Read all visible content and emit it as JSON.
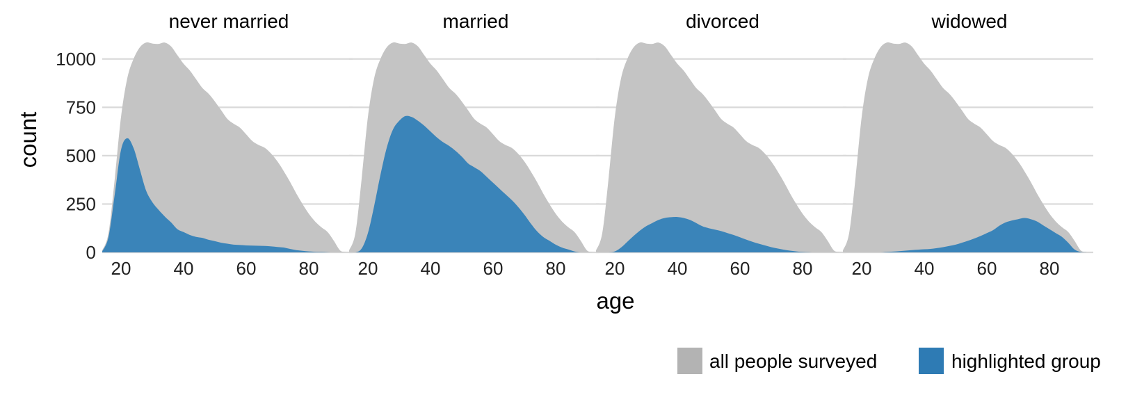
{
  "chart_data": {
    "type": "area",
    "xlabel": "age",
    "ylabel": "count",
    "xlim": [
      14,
      94
    ],
    "ylim": [
      0,
      1100
    ],
    "xticks": [
      20,
      40,
      60,
      80
    ],
    "yticks": [
      0,
      250,
      500,
      750,
      1000
    ],
    "grid": "horizontal",
    "legend_position": "bottom-right",
    "legend": [
      {
        "label": "all people surveyed",
        "color": "#b3b3b3"
      },
      {
        "label": "highlighted group",
        "color": "#2e7bb4"
      }
    ],
    "colors": {
      "all": "#c4c4c4",
      "highlight": "#3a84b9",
      "grid": "#d9d9d9"
    },
    "all_people": {
      "x": [
        14,
        16,
        18,
        20,
        22,
        24,
        26,
        28,
        30,
        32,
        34,
        36,
        38,
        40,
        42,
        44,
        46,
        48,
        50,
        52,
        54,
        56,
        58,
        60,
        62,
        64,
        66,
        68,
        70,
        72,
        74,
        76,
        78,
        80,
        82,
        84,
        86,
        88,
        90,
        92
      ],
      "y": [
        10,
        100,
        380,
        700,
        900,
        1000,
        1060,
        1085,
        1080,
        1078,
        1085,
        1065,
        1020,
        975,
        940,
        895,
        850,
        820,
        780,
        735,
        690,
        665,
        645,
        610,
        575,
        555,
        540,
        510,
        470,
        420,
        365,
        305,
        250,
        200,
        160,
        130,
        105,
        60,
        10,
        0
      ]
    },
    "panels": [
      {
        "title": "never married",
        "highlight": {
          "x": [
            14,
            16,
            18,
            20,
            22,
            24,
            26,
            28,
            30,
            32,
            34,
            36,
            38,
            40,
            42,
            44,
            46,
            48,
            50,
            52,
            54,
            56,
            58,
            60,
            62,
            64,
            66,
            68,
            70,
            72,
            74,
            76,
            78,
            80,
            82,
            84,
            86,
            88,
            90,
            92
          ],
          "y": [
            5,
            80,
            300,
            530,
            590,
            540,
            430,
            320,
            260,
            220,
            185,
            155,
            120,
            105,
            90,
            80,
            75,
            65,
            58,
            50,
            45,
            40,
            38,
            36,
            35,
            34,
            33,
            31,
            28,
            25,
            18,
            12,
            8,
            5,
            3,
            2,
            1,
            0,
            0,
            0
          ]
        }
      },
      {
        "title": "married",
        "highlight": {
          "x": [
            14,
            16,
            18,
            20,
            22,
            24,
            26,
            28,
            30,
            32,
            34,
            36,
            38,
            40,
            42,
            44,
            46,
            48,
            50,
            52,
            54,
            56,
            58,
            60,
            62,
            64,
            66,
            68,
            70,
            72,
            74,
            76,
            78,
            80,
            82,
            84,
            86,
            88,
            90,
            92
          ],
          "y": [
            0,
            0,
            20,
            100,
            240,
            400,
            540,
            635,
            680,
            705,
            700,
            680,
            655,
            625,
            595,
            570,
            550,
            525,
            495,
            460,
            440,
            420,
            390,
            360,
            330,
            300,
            270,
            235,
            195,
            150,
            110,
            80,
            60,
            40,
            25,
            15,
            5,
            0,
            0,
            0
          ]
        }
      },
      {
        "title": "divorced",
        "highlight": {
          "x": [
            14,
            16,
            18,
            20,
            22,
            24,
            26,
            28,
            30,
            32,
            34,
            36,
            38,
            40,
            42,
            44,
            46,
            48,
            50,
            52,
            54,
            56,
            58,
            60,
            62,
            64,
            66,
            68,
            70,
            72,
            74,
            76,
            78,
            80,
            82,
            84,
            86,
            88,
            90,
            92
          ],
          "y": [
            0,
            0,
            0,
            5,
            25,
            55,
            85,
            112,
            135,
            152,
            168,
            178,
            182,
            183,
            178,
            168,
            152,
            135,
            125,
            118,
            110,
            100,
            90,
            78,
            66,
            55,
            45,
            36,
            27,
            20,
            14,
            9,
            5,
            2,
            1,
            0,
            0,
            0,
            0,
            0
          ]
        }
      },
      {
        "title": "widowed",
        "highlight": {
          "x": [
            14,
            16,
            18,
            20,
            22,
            24,
            26,
            28,
            30,
            32,
            34,
            36,
            38,
            40,
            42,
            44,
            46,
            48,
            50,
            52,
            54,
            56,
            58,
            60,
            62,
            64,
            66,
            68,
            70,
            72,
            74,
            76,
            78,
            80,
            82,
            84,
            86,
            88,
            90,
            92
          ],
          "y": [
            0,
            0,
            0,
            0,
            0,
            0,
            0,
            2,
            4,
            6,
            9,
            12,
            14,
            16,
            18,
            22,
            27,
            33,
            40,
            50,
            60,
            72,
            85,
            100,
            115,
            138,
            155,
            165,
            172,
            178,
            172,
            160,
            140,
            120,
            100,
            80,
            50,
            15,
            2,
            0
          ]
        }
      }
    ]
  }
}
